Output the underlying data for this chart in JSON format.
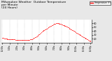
{
  "title": "Milwaukee Weather  Outdoor Temperature\nper Minute\n(24 Hours)",
  "bg_color": "#e8e8e8",
  "plot_bg_color": "#ffffff",
  "dot_color": "#ff0000",
  "dot_size": 0.3,
  "ylim": [
    10,
    70
  ],
  "yticks": [
    20,
    30,
    40,
    50,
    60
  ],
  "title_fontsize": 3.2,
  "legend_label": "Temperature (F)",
  "legend_color": "#ff0000",
  "time_points": [
    0,
    1,
    2,
    3,
    4,
    5,
    6,
    7,
    8,
    9,
    10,
    11,
    12,
    13,
    14,
    15,
    16,
    17,
    18,
    19,
    20,
    21,
    22,
    23,
    24,
    25,
    26,
    27,
    28,
    29,
    30,
    31,
    32,
    33,
    34,
    35,
    36,
    37,
    38,
    39,
    40,
    41,
    42,
    43,
    44,
    45,
    46,
    47,
    48,
    49,
    50,
    51,
    52,
    53,
    54,
    55,
    56,
    57,
    58,
    59,
    60,
    61,
    62,
    63,
    64,
    65,
    66,
    67,
    68,
    69,
    70,
    71,
    72,
    73,
    74,
    75,
    76,
    77,
    78,
    79,
    80,
    81,
    82,
    83,
    84,
    85,
    86,
    87,
    88,
    89,
    90,
    91,
    92,
    93,
    94,
    95,
    96,
    97,
    98,
    99,
    100,
    101,
    102,
    103,
    104,
    105,
    106,
    107,
    108,
    109,
    110,
    111,
    112,
    113,
    114,
    115,
    116,
    117,
    118,
    119,
    120,
    121,
    122,
    123,
    124,
    125,
    126,
    127,
    128,
    129,
    130,
    131,
    132,
    133,
    134,
    135,
    136,
    137,
    138,
    139,
    140,
    141,
    142,
    143
  ],
  "temp_values": [
    23,
    22,
    22,
    21,
    21,
    20,
    20,
    20,
    19,
    19,
    19,
    19,
    19,
    18,
    18,
    18,
    18,
    18,
    18,
    18,
    18,
    17,
    17,
    17,
    17,
    17,
    17,
    17,
    17,
    17,
    17,
    17,
    17,
    17,
    17,
    17,
    17,
    17,
    17,
    17,
    17,
    17,
    17,
    17,
    17,
    18,
    18,
    18,
    19,
    20,
    21,
    22,
    23,
    24,
    25,
    26,
    27,
    28,
    29,
    31,
    32,
    34,
    36,
    37,
    38,
    40,
    41,
    42,
    43,
    44,
    45,
    46,
    47,
    48,
    49,
    50,
    51,
    52,
    53,
    54,
    55,
    56,
    57,
    58,
    58,
    59,
    59,
    60,
    60,
    60,
    60,
    60,
    59,
    59,
    58,
    58,
    57,
    57,
    56,
    56,
    55,
    54,
    54,
    53,
    52,
    51,
    50,
    49,
    48,
    47,
    46,
    45,
    44,
    43,
    42,
    41,
    40,
    39,
    38,
    37,
    36,
    35,
    34,
    33,
    32,
    31,
    30,
    29,
    28,
    27,
    26,
    25,
    24,
    23,
    22,
    21,
    20,
    19,
    18,
    17,
    16,
    15,
    15,
    14
  ],
  "xtick_positions": [
    0,
    12,
    24,
    36,
    48,
    60,
    72,
    84,
    96,
    108,
    120,
    132,
    143
  ],
  "xtick_labels": [
    "12:00a",
    "1:00a",
    "2:00a",
    "3:00a",
    "4:00a",
    "5:00a",
    "6:00a",
    "7:00a",
    "8:00a",
    "9:00a",
    "10:00a",
    "11:00a",
    "12:00p"
  ]
}
